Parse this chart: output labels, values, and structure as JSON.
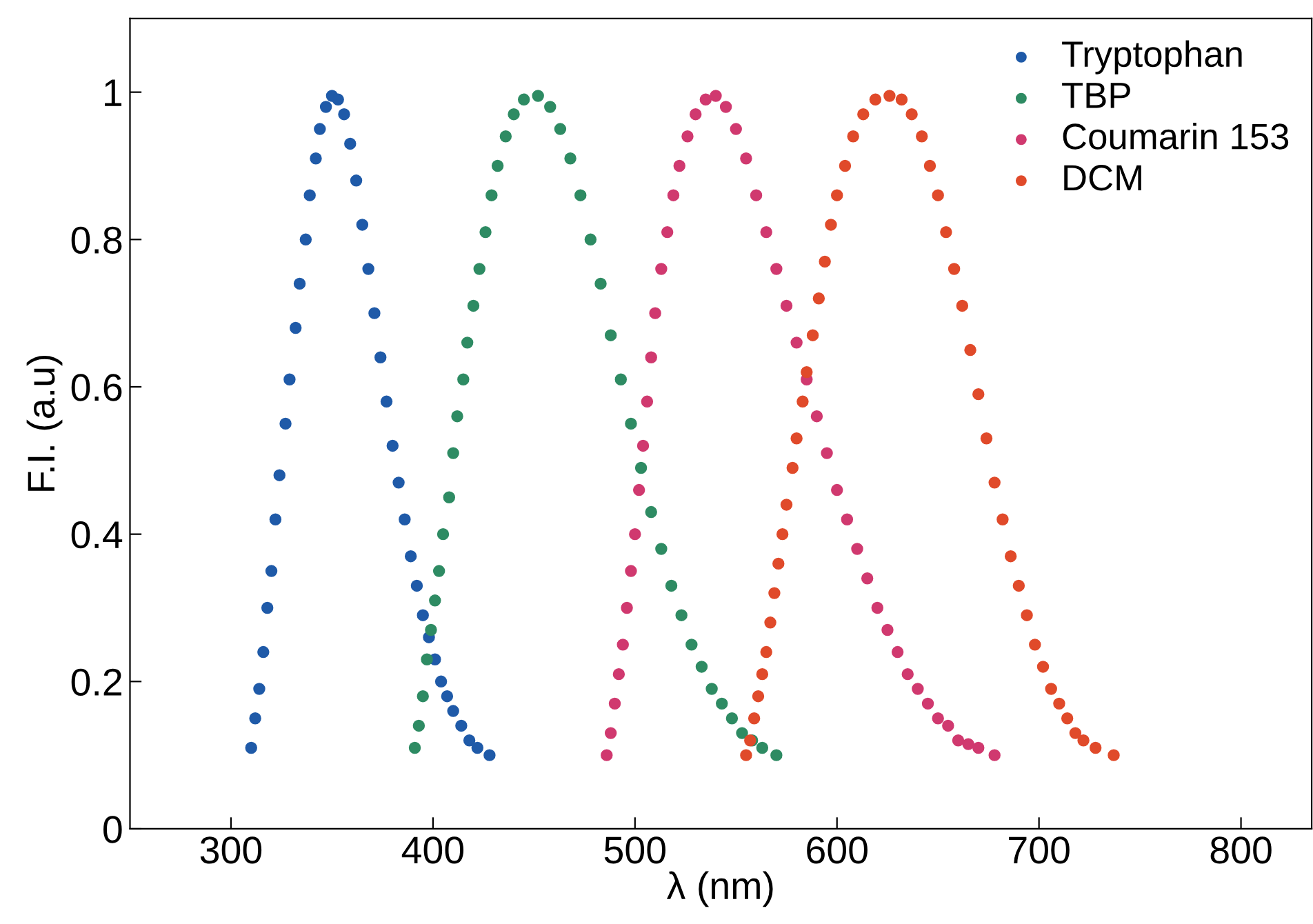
{
  "chart_data": {
    "type": "scatter",
    "xlabel": "λ (nm)",
    "ylabel": "F.I. (a.u)",
    "xlim": [
      250,
      835
    ],
    "ylim": [
      0,
      1.1
    ],
    "xticks": [
      300,
      400,
      500,
      600,
      700,
      800
    ],
    "yticks": [
      0,
      0.2,
      0.4,
      0.6,
      0.8,
      1
    ],
    "grid": false,
    "legend": "top right",
    "marker": "circle",
    "series": [
      {
        "name": "Tryptophan",
        "color": "#1f5aa8",
        "x": [
          310,
          312,
          314,
          316,
          318,
          320,
          322,
          324,
          327,
          329,
          332,
          334,
          337,
          339,
          342,
          344,
          347,
          350,
          353,
          356,
          359,
          362,
          365,
          368,
          371,
          374,
          377,
          380,
          383,
          386,
          389,
          392,
          395,
          398,
          401,
          404,
          407,
          410,
          414,
          418,
          422,
          428
        ],
        "values": [
          0.11,
          0.15,
          0.19,
          0.24,
          0.3,
          0.35,
          0.42,
          0.48,
          0.55,
          0.61,
          0.68,
          0.74,
          0.8,
          0.86,
          0.91,
          0.95,
          0.98,
          0.995,
          0.99,
          0.97,
          0.93,
          0.88,
          0.82,
          0.76,
          0.7,
          0.64,
          0.58,
          0.52,
          0.47,
          0.42,
          0.37,
          0.33,
          0.29,
          0.26,
          0.23,
          0.2,
          0.18,
          0.16,
          0.14,
          0.12,
          0.11,
          0.1
        ]
      },
      {
        "name": "TBP",
        "color": "#2e8b63",
        "x": [
          391,
          393,
          395,
          397,
          399,
          401,
          403,
          405,
          408,
          410,
          412,
          415,
          417,
          420,
          423,
          426,
          429,
          432,
          436,
          440,
          445,
          452,
          458,
          463,
          468,
          473,
          478,
          483,
          488,
          493,
          498,
          503,
          508,
          513,
          518,
          523,
          528,
          533,
          538,
          543,
          548,
          553,
          558,
          563,
          570
        ],
        "values": [
          0.11,
          0.14,
          0.18,
          0.23,
          0.27,
          0.31,
          0.35,
          0.4,
          0.45,
          0.51,
          0.56,
          0.61,
          0.66,
          0.71,
          0.76,
          0.81,
          0.86,
          0.9,
          0.94,
          0.97,
          0.99,
          0.995,
          0.98,
          0.95,
          0.91,
          0.86,
          0.8,
          0.74,
          0.67,
          0.61,
          0.55,
          0.49,
          0.43,
          0.38,
          0.33,
          0.29,
          0.25,
          0.22,
          0.19,
          0.17,
          0.15,
          0.13,
          0.12,
          0.11,
          0.1
        ]
      },
      {
        "name": "Coumarin 153",
        "color": "#d0396f",
        "x": [
          486,
          488,
          490,
          492,
          494,
          496,
          498,
          500,
          502,
          504,
          506,
          508,
          510,
          513,
          516,
          519,
          522,
          526,
          530,
          535,
          540,
          545,
          550,
          555,
          560,
          565,
          570,
          575,
          580,
          585,
          590,
          595,
          600,
          605,
          610,
          615,
          620,
          625,
          630,
          635,
          640,
          645,
          650,
          655,
          660,
          665,
          670,
          678
        ],
        "values": [
          0.1,
          0.13,
          0.17,
          0.21,
          0.25,
          0.3,
          0.35,
          0.4,
          0.46,
          0.52,
          0.58,
          0.64,
          0.7,
          0.76,
          0.81,
          0.86,
          0.9,
          0.94,
          0.97,
          0.99,
          0.995,
          0.98,
          0.95,
          0.91,
          0.86,
          0.81,
          0.76,
          0.71,
          0.66,
          0.61,
          0.56,
          0.51,
          0.46,
          0.42,
          0.38,
          0.34,
          0.3,
          0.27,
          0.24,
          0.21,
          0.19,
          0.17,
          0.15,
          0.14,
          0.12,
          0.115,
          0.11,
          0.1
        ]
      },
      {
        "name": "DCM",
        "color": "#e04a2a",
        "x": [
          555,
          557,
          559,
          561,
          563,
          565,
          567,
          569,
          571,
          573,
          575,
          578,
          580,
          583,
          585,
          588,
          591,
          594,
          597,
          600,
          604,
          608,
          613,
          619,
          626,
          632,
          637,
          642,
          646,
          650,
          654,
          658,
          662,
          666,
          670,
          674,
          678,
          682,
          686,
          690,
          694,
          698,
          702,
          706,
          710,
          714,
          718,
          722,
          728,
          737
        ],
        "values": [
          0.1,
          0.12,
          0.15,
          0.18,
          0.21,
          0.24,
          0.28,
          0.32,
          0.36,
          0.4,
          0.44,
          0.49,
          0.53,
          0.58,
          0.62,
          0.67,
          0.72,
          0.77,
          0.82,
          0.86,
          0.9,
          0.94,
          0.97,
          0.99,
          0.995,
          0.99,
          0.97,
          0.94,
          0.9,
          0.86,
          0.81,
          0.76,
          0.71,
          0.65,
          0.59,
          0.53,
          0.47,
          0.42,
          0.37,
          0.33,
          0.29,
          0.25,
          0.22,
          0.19,
          0.17,
          0.15,
          0.13,
          0.12,
          0.11,
          0.1
        ]
      }
    ]
  }
}
